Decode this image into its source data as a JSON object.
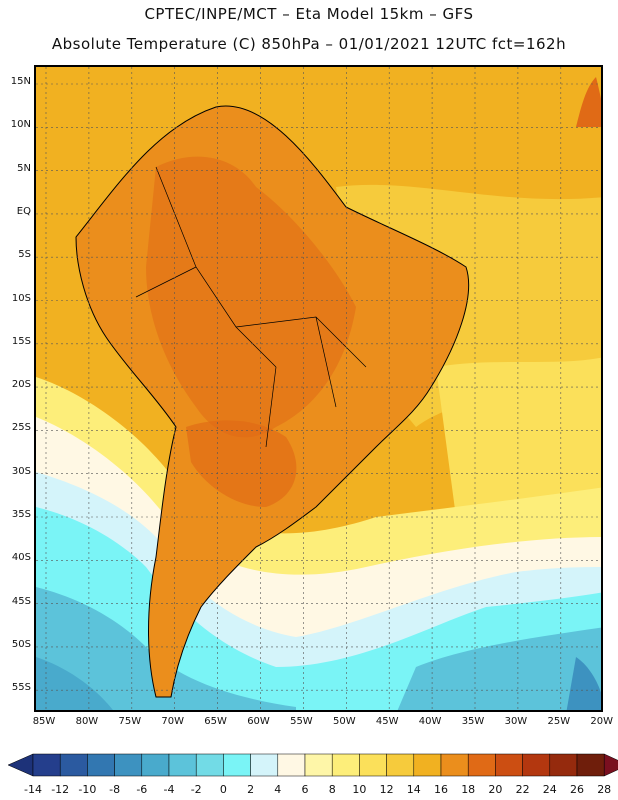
{
  "header": {
    "title_line1": "CPTEC/INPE/MCT –  Eta Model 15km – GFS",
    "title_line2": "Absolute Temperature (C) 850hPa – 01/01/2021 12UTC fct=162h"
  },
  "map": {
    "lat_labels": [
      "15N",
      "10N",
      "5N",
      "EQ",
      "5S",
      "10S",
      "15S",
      "20S",
      "25S",
      "30S",
      "35S",
      "40S",
      "45S",
      "50S",
      "55S"
    ],
    "lon_labels": [
      "85W",
      "80W",
      "75W",
      "70W",
      "65W",
      "60W",
      "55W",
      "50W",
      "45W",
      "40W",
      "35W",
      "30W",
      "25W",
      "20W"
    ],
    "region": "South America"
  },
  "colorbar": {
    "labels": [
      "-14",
      "-12",
      "-10",
      "-8",
      "-6",
      "-4",
      "-2",
      "0",
      "2",
      "4",
      "6",
      "8",
      "10",
      "12",
      "14",
      "16",
      "18",
      "20",
      "22",
      "24",
      "26",
      "28"
    ],
    "colors": [
      "#243e8c",
      "#2b5aa0",
      "#3277b1",
      "#3d92c0",
      "#49aacc",
      "#5cc3da",
      "#72dbe6",
      "#7af4f6",
      "#d4f4fa",
      "#fff8e4",
      "#fef6a8",
      "#fdee7a",
      "#fbe05a",
      "#f6cb3c",
      "#f1b121",
      "#eb8e1c",
      "#e06a16",
      "#cc4e12",
      "#b3370f",
      "#952a0d",
      "#6f1e0b"
    ],
    "under_color": "#1d3279",
    "over_color": "#7a0f1f"
  }
}
